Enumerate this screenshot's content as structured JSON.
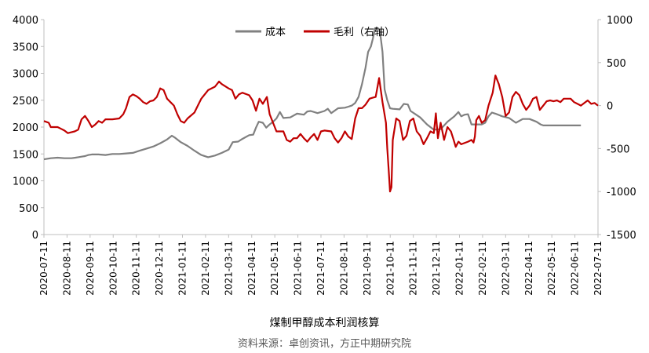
{
  "chart_data": {
    "type": "line",
    "title": "煤制甲醇成本利润核算",
    "source": "资料来源：卓创资讯，方正中期研究院",
    "left_axis": {
      "min": 0,
      "max": 4000,
      "ticks": [
        "0",
        "500",
        "1000",
        "1500",
        "2000",
        "2500",
        "3000",
        "3500",
        "4000"
      ]
    },
    "right_axis": {
      "min": -1500,
      "max": 1000,
      "ticks": [
        "-1500",
        "-1000",
        "-500",
        "0",
        "500",
        "1000"
      ]
    },
    "x_ticks": [
      "2020-07-11",
      "2020-08-11",
      "2020-09-11",
      "2020-10-11",
      "2020-11-11",
      "2020-12-11",
      "2021-01-11",
      "2021-02-11",
      "2021-03-11",
      "2021-04-11",
      "2021-05-11",
      "2021-06-11",
      "2021-07-11",
      "2021-08-11",
      "2021-09-11",
      "2021-10-11",
      "2021-11-11",
      "2021-12-11",
      "2022-01-11",
      "2022-02-11",
      "2022-03-11",
      "2022-04-11",
      "2022-05-11",
      "2022-06-11",
      "2022-07-11"
    ],
    "legend": {
      "position": "top-center"
    },
    "series": [
      {
        "name": "成本",
        "axis": "left",
        "color": "#808080",
        "points": [
          [
            0,
            1400
          ],
          [
            1,
            1420
          ],
          [
            2,
            1430
          ],
          [
            3,
            1420
          ],
          [
            4,
            1420
          ],
          [
            4.6,
            1430
          ],
          [
            5,
            1440
          ],
          [
            5.5,
            1450
          ],
          [
            6,
            1460
          ],
          [
            6.5,
            1480
          ],
          [
            7,
            1490
          ],
          [
            7.5,
            1490
          ],
          [
            8,
            1490
          ],
          [
            9,
            1480
          ],
          [
            10,
            1500
          ],
          [
            11,
            1500
          ],
          [
            12,
            1510
          ],
          [
            13,
            1520
          ],
          [
            14,
            1560
          ],
          [
            15,
            1600
          ],
          [
            16,
            1640
          ],
          [
            17,
            1700
          ],
          [
            18,
            1770
          ],
          [
            18.7,
            1840
          ],
          [
            19.2,
            1800
          ],
          [
            20,
            1720
          ],
          [
            21,
            1650
          ],
          [
            22,
            1560
          ],
          [
            23,
            1480
          ],
          [
            24,
            1440
          ],
          [
            25,
            1470
          ],
          [
            26,
            1520
          ],
          [
            27,
            1580
          ],
          [
            27.6,
            1720
          ],
          [
            28.4,
            1730
          ],
          [
            29,
            1780
          ],
          [
            30,
            1850
          ],
          [
            30.6,
            1860
          ],
          [
            31,
            1990
          ],
          [
            31.4,
            2100
          ],
          [
            32,
            2080
          ],
          [
            32.5,
            1990
          ],
          [
            33,
            2050
          ],
          [
            33.5,
            2100
          ],
          [
            34,
            2160
          ],
          [
            34.5,
            2280
          ],
          [
            35,
            2170
          ],
          [
            36,
            2180
          ],
          [
            37,
            2250
          ],
          [
            38,
            2230
          ],
          [
            38.5,
            2290
          ],
          [
            39,
            2300
          ],
          [
            40,
            2260
          ],
          [
            41,
            2300
          ],
          [
            41.5,
            2340
          ],
          [
            42,
            2260
          ],
          [
            43,
            2350
          ],
          [
            44,
            2360
          ],
          [
            44.5,
            2380
          ],
          [
            45,
            2400
          ],
          [
            45.5,
            2450
          ],
          [
            46,
            2560
          ],
          [
            46.5,
            2800
          ],
          [
            47,
            3100
          ],
          [
            47.4,
            3400
          ],
          [
            47.8,
            3500
          ],
          [
            48.1,
            3650
          ],
          [
            48.4,
            3840
          ],
          [
            48.8,
            3840
          ],
          [
            49.1,
            3800
          ],
          [
            49.5,
            3400
          ],
          [
            49.8,
            2700
          ],
          [
            50.2,
            2500
          ],
          [
            50.6,
            2350
          ],
          [
            51,
            2340
          ],
          [
            52,
            2330
          ],
          [
            52.6,
            2430
          ],
          [
            53.2,
            2420
          ],
          [
            53.6,
            2300
          ],
          [
            54.2,
            2250
          ],
          [
            55,
            2180
          ],
          [
            56,
            2050
          ],
          [
            57,
            1950
          ],
          [
            58,
            1960
          ],
          [
            59,
            2100
          ],
          [
            60,
            2200
          ],
          [
            60.6,
            2280
          ],
          [
            61,
            2200
          ],
          [
            61.5,
            2230
          ],
          [
            62,
            2240
          ],
          [
            62.5,
            2050
          ],
          [
            63,
            2050
          ],
          [
            64,
            2050
          ],
          [
            64.5,
            2080
          ],
          [
            65,
            2200
          ],
          [
            65.5,
            2270
          ],
          [
            66,
            2250
          ],
          [
            67,
            2200
          ],
          [
            68,
            2170
          ],
          [
            69,
            2080
          ],
          [
            70,
            2150
          ],
          [
            71,
            2150
          ],
          [
            72,
            2100
          ],
          [
            72.6,
            2050
          ],
          [
            73,
            2030
          ],
          [
            75,
            2030
          ],
          [
            77,
            2030
          ],
          [
            78,
            2030
          ],
          [
            78.5,
            2030
          ]
        ]
      },
      {
        "name": "毛利（右轴）",
        "axis": "right",
        "color": "#C00000",
        "points": [
          [
            0,
            -180
          ],
          [
            0.7,
            -200
          ],
          [
            1,
            -250
          ],
          [
            2,
            -250
          ],
          [
            2.5,
            -270
          ],
          [
            3,
            -290
          ],
          [
            3.5,
            -320
          ],
          [
            4,
            -310
          ],
          [
            4.5,
            -300
          ],
          [
            5,
            -280
          ],
          [
            5.5,
            -160
          ],
          [
            6,
            -120
          ],
          [
            6.5,
            -180
          ],
          [
            7,
            -250
          ],
          [
            7.5,
            -220
          ],
          [
            8,
            -180
          ],
          [
            8.5,
            -200
          ],
          [
            9,
            -160
          ],
          [
            10,
            -160
          ],
          [
            11,
            -150
          ],
          [
            11.6,
            -100
          ],
          [
            12,
            -30
          ],
          [
            12.5,
            100
          ],
          [
            13,
            130
          ],
          [
            13.5,
            110
          ],
          [
            14,
            80
          ],
          [
            14.5,
            40
          ],
          [
            15,
            20
          ],
          [
            15.5,
            50
          ],
          [
            16,
            60
          ],
          [
            16.5,
            100
          ],
          [
            17,
            200
          ],
          [
            17.5,
            180
          ],
          [
            18,
            80
          ],
          [
            18.5,
            40
          ],
          [
            19,
            0
          ],
          [
            19.5,
            -100
          ],
          [
            20,
            -180
          ],
          [
            20.5,
            -200
          ],
          [
            21,
            -150
          ],
          [
            22,
            -80
          ],
          [
            22.5,
            0
          ],
          [
            23,
            80
          ],
          [
            24,
            180
          ],
          [
            25,
            220
          ],
          [
            25.6,
            280
          ],
          [
            26,
            250
          ],
          [
            27,
            200
          ],
          [
            27.5,
            180
          ],
          [
            28,
            80
          ],
          [
            28.5,
            130
          ],
          [
            29,
            150
          ],
          [
            30,
            120
          ],
          [
            30.5,
            60
          ],
          [
            31,
            -60
          ],
          [
            31.5,
            80
          ],
          [
            32,
            20
          ],
          [
            32.6,
            100
          ],
          [
            33,
            -100
          ],
          [
            34,
            -300
          ],
          [
            35,
            -300
          ],
          [
            35.5,
            -400
          ],
          [
            36,
            -420
          ],
          [
            36.5,
            -380
          ],
          [
            37,
            -380
          ],
          [
            37.5,
            -330
          ],
          [
            38,
            -380
          ],
          [
            38.5,
            -420
          ],
          [
            39,
            -370
          ],
          [
            39.5,
            -330
          ],
          [
            40,
            -400
          ],
          [
            40.5,
            -300
          ],
          [
            41,
            -290
          ],
          [
            42,
            -300
          ],
          [
            42.5,
            -380
          ],
          [
            43,
            -430
          ],
          [
            43.5,
            -380
          ],
          [
            44,
            -300
          ],
          [
            44.5,
            -360
          ],
          [
            45,
            -390
          ],
          [
            45.5,
            -150
          ],
          [
            46,
            -30
          ],
          [
            46.5,
            -30
          ],
          [
            47,
            10
          ],
          [
            47.6,
            80
          ],
          [
            48,
            90
          ],
          [
            48.5,
            100
          ],
          [
            49,
            320
          ],
          [
            49.5,
            40
          ],
          [
            50,
            -200
          ],
          [
            50.2,
            -500
          ],
          [
            50.4,
            -750
          ],
          [
            50.6,
            -1000
          ],
          [
            50.8,
            -950
          ],
          [
            51,
            -400
          ],
          [
            51.5,
            -150
          ],
          [
            52,
            -180
          ],
          [
            52.5,
            -400
          ],
          [
            53,
            -350
          ],
          [
            53.5,
            -180
          ],
          [
            54,
            -150
          ],
          [
            54.5,
            -300
          ],
          [
            55,
            -350
          ],
          [
            55.5,
            -450
          ],
          [
            56,
            -380
          ],
          [
            56.5,
            -300
          ],
          [
            57,
            -320
          ],
          [
            57.3,
            -90
          ],
          [
            57.6,
            -380
          ],
          [
            58,
            -200
          ],
          [
            58.5,
            -400
          ],
          [
            59,
            -250
          ],
          [
            59.5,
            -300
          ],
          [
            59.9,
            -400
          ],
          [
            60.2,
            -480
          ],
          [
            60.6,
            -420
          ],
          [
            61,
            -450
          ],
          [
            62,
            -420
          ],
          [
            62.5,
            -400
          ],
          [
            62.8,
            -430
          ],
          [
            63,
            -360
          ],
          [
            63.2,
            -170
          ],
          [
            63.6,
            -120
          ],
          [
            64,
            -200
          ],
          [
            64.5,
            -170
          ],
          [
            65,
            0
          ],
          [
            65.6,
            150
          ],
          [
            66,
            350
          ],
          [
            66.5,
            250
          ],
          [
            67,
            100
          ],
          [
            67.5,
            -120
          ],
          [
            68,
            -80
          ],
          [
            68.5,
            100
          ],
          [
            69,
            160
          ],
          [
            69.5,
            120
          ],
          [
            70,
            20
          ],
          [
            70.5,
            -50
          ],
          [
            71,
            0
          ],
          [
            71.5,
            80
          ],
          [
            72,
            100
          ],
          [
            72.5,
            -50
          ],
          [
            73,
            0
          ],
          [
            73.5,
            50
          ],
          [
            74,
            60
          ],
          [
            74.5,
            50
          ],
          [
            75,
            60
          ],
          [
            75.5,
            40
          ],
          [
            76,
            80
          ],
          [
            77,
            80
          ],
          [
            77.5,
            40
          ],
          [
            78,
            20
          ],
          [
            78.5,
            0
          ],
          [
            79,
            30
          ],
          [
            79.5,
            60
          ],
          [
            80,
            20
          ],
          [
            80.5,
            30
          ],
          [
            81,
            0
          ]
        ]
      }
    ]
  }
}
